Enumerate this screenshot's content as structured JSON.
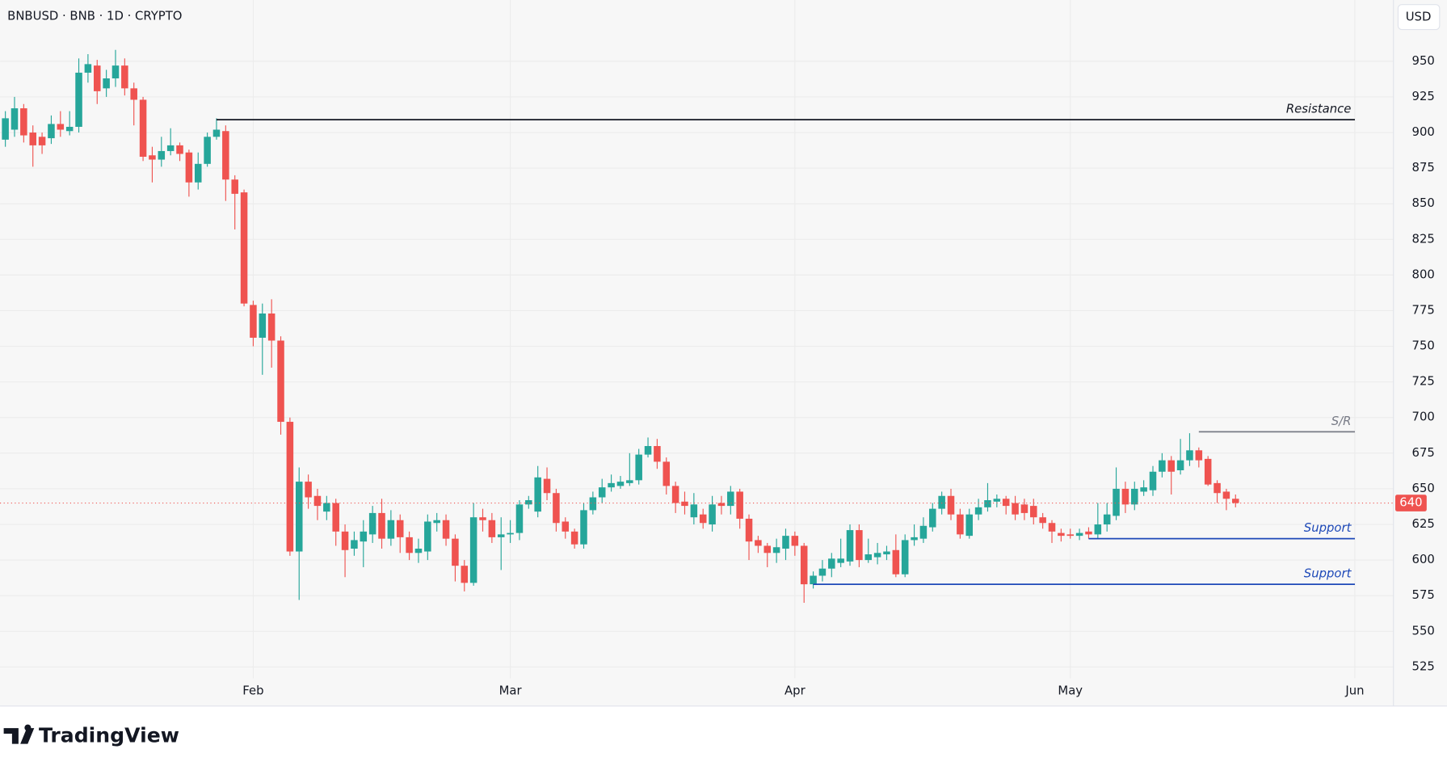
{
  "chart_data": {
    "type": "candlestick",
    "title": "BNBUSD · BNB · 1D · CRYPTO",
    "currency": "USD",
    "branding": "TradingView",
    "up_color": "#26a69a",
    "down_color": "#ef5350",
    "grid": true,
    "categories": [
      null,
      null,
      null,
      null,
      null,
      null,
      null,
      null,
      null,
      null,
      null,
      null,
      null,
      null,
      null,
      null,
      null,
      null,
      null,
      null,
      null,
      null,
      null,
      null,
      null,
      null,
      null,
      null,
      null,
      null,
      null,
      null,
      null,
      null,
      null,
      null,
      null,
      null,
      null,
      null,
      null,
      null,
      null,
      null,
      null,
      null,
      null,
      null,
      null,
      null,
      null,
      null,
      null,
      null,
      null,
      null,
      null,
      null,
      null,
      null,
      null,
      null,
      null,
      null,
      null,
      null,
      null,
      null,
      null,
      null,
      null,
      null,
      null,
      null,
      null,
      null,
      null,
      null,
      null,
      null,
      null,
      null,
      null,
      null,
      null,
      null,
      null,
      null,
      null,
      null,
      null,
      null,
      null,
      null,
      null,
      null,
      null,
      null,
      null,
      null,
      null,
      null,
      null,
      null,
      null,
      null,
      null,
      null,
      null,
      null,
      null,
      null,
      null,
      null,
      null,
      null,
      null,
      null,
      null,
      null,
      null,
      null,
      null,
      null,
      null,
      null,
      null,
      null,
      null,
      null,
      null,
      null,
      null,
      null,
      null
    ],
    "open": [
      895,
      902,
      917,
      900,
      897,
      896,
      906,
      901,
      904,
      942,
      947,
      931,
      938,
      947,
      931,
      923,
      884,
      881,
      887,
      891,
      886,
      865,
      878,
      897,
      901,
      867,
      858,
      779,
      756,
      773,
      754,
      697,
      606,
      655,
      645,
      634,
      640,
      620,
      608,
      613,
      618,
      633,
      615,
      628,
      616,
      605,
      606,
      626,
      628,
      615,
      596,
      584,
      630,
      628,
      616,
      618,
      619,
      639,
      634,
      657,
      647,
      627,
      620,
      611,
      635,
      644,
      651,
      652,
      654,
      656,
      674,
      680,
      669,
      652,
      641,
      630,
      632,
      625,
      640,
      638,
      648,
      629,
      614,
      610,
      605,
      608,
      617,
      610,
      583,
      589,
      594,
      598,
      599,
      621,
      600,
      602,
      604,
      607,
      590,
      614,
      615,
      623,
      636,
      645,
      632,
      617,
      632,
      637,
      641,
      643,
      640,
      639,
      638,
      630,
      626,
      619,
      618,
      617,
      620,
      618,
      625,
      631,
      650,
      639,
      648,
      649,
      662,
      670,
      663,
      670,
      677,
      671,
      654,
      648,
      643
    ],
    "high": [
      915,
      925,
      920,
      905,
      900,
      912,
      915,
      915,
      952,
      955,
      951,
      944,
      958,
      952,
      935,
      925,
      890,
      897,
      903,
      893,
      888,
      886,
      900,
      910,
      905,
      870,
      860,
      782,
      780,
      783,
      757,
      700,
      665,
      660,
      650,
      645,
      643,
      625,
      620,
      628,
      638,
      643,
      635,
      632,
      620,
      615,
      632,
      633,
      632,
      618,
      600,
      640,
      636,
      633,
      630,
      628,
      642,
      645,
      666,
      665,
      650,
      630,
      622,
      640,
      648,
      657,
      660,
      659,
      675,
      678,
      686,
      685,
      672,
      655,
      648,
      647,
      636,
      645,
      645,
      652,
      650,
      632,
      617,
      612,
      615,
      622,
      620,
      612,
      592,
      600,
      605,
      615,
      625,
      625,
      615,
      612,
      610,
      618,
      618,
      625,
      630,
      640,
      648,
      650,
      636,
      636,
      643,
      654,
      646,
      645,
      645,
      643,
      643,
      633,
      628,
      622,
      622,
      622,
      623,
      640,
      640,
      665,
      655,
      655,
      656,
      666,
      675,
      673,
      685,
      689,
      679,
      673,
      656,
      650,
      646
    ],
    "low": [
      890,
      897,
      893,
      876,
      885,
      892,
      897,
      898,
      900,
      935,
      920,
      925,
      932,
      926,
      905,
      880,
      865,
      876,
      884,
      880,
      855,
      860,
      876,
      895,
      852,
      832,
      778,
      750,
      730,
      735,
      688,
      603,
      572,
      636,
      628,
      628,
      610,
      588,
      603,
      595,
      612,
      608,
      610,
      605,
      600,
      598,
      600,
      620,
      610,
      585,
      578,
      582,
      620,
      612,
      593,
      612,
      614,
      636,
      630,
      642,
      620,
      615,
      608,
      608,
      632,
      640,
      648,
      650,
      652,
      653,
      672,
      664,
      646,
      633,
      632,
      625,
      622,
      620,
      632,
      632,
      622,
      600,
      605,
      595,
      598,
      600,
      603,
      570,
      580,
      585,
      588,
      595,
      596,
      595,
      598,
      597,
      600,
      588,
      588,
      610,
      612,
      620,
      632,
      628,
      615,
      615,
      628,
      634,
      637,
      632,
      628,
      628,
      625,
      622,
      612,
      613,
      615,
      614,
      615,
      615,
      620,
      628,
      633,
      635,
      645,
      645,
      658,
      646,
      660,
      666,
      665,
      652,
      640,
      635,
      637
    ],
    "close": [
      910,
      917,
      898,
      891,
      891,
      906,
      902,
      904,
      942,
      948,
      929,
      938,
      947,
      931,
      923,
      883,
      881,
      887,
      891,
      885,
      865,
      878,
      897,
      902,
      867,
      857,
      780,
      756,
      773,
      754,
      697,
      606,
      655,
      644,
      638,
      640,
      620,
      607,
      614,
      620,
      633,
      615,
      628,
      616,
      605,
      608,
      627,
      628,
      615,
      596,
      584,
      630,
      628,
      616,
      618,
      619,
      639,
      642,
      658,
      647,
      626,
      620,
      611,
      635,
      644,
      651,
      654,
      655,
      656,
      674,
      680,
      669,
      652,
      640,
      638,
      639,
      626,
      639,
      638,
      648,
      629,
      613,
      610,
      605,
      609,
      617,
      610,
      583,
      589,
      594,
      601,
      601,
      621,
      600,
      604,
      605,
      606,
      590,
      614,
      616,
      624,
      636,
      645,
      632,
      618,
      632,
      637,
      642,
      643,
      638,
      632,
      633,
      630,
      626,
      620,
      617,
      617,
      619,
      618,
      625,
      632,
      650,
      639,
      650,
      651,
      662,
      670,
      662,
      670,
      677,
      670,
      653,
      647,
      643,
      640
    ],
    "xlim": [
      -0.58,
      151.2
    ],
    "xticks": [
      {
        "value": 27,
        "label": "Feb"
      },
      {
        "value": 55,
        "label": "Mar"
      },
      {
        "value": 86,
        "label": "Apr"
      },
      {
        "value": 116,
        "label": "May"
      },
      {
        "value": 147,
        "label": "Jun"
      }
    ],
    "ylim": [
      517,
      993
    ],
    "yticks": [
      525,
      550,
      575,
      600,
      625,
      650,
      675,
      700,
      725,
      750,
      775,
      800,
      825,
      850,
      875,
      900,
      925,
      950
    ],
    "levels": [
      {
        "label": "Resistance",
        "value": 909,
        "start": 23,
        "end": 147,
        "color": "#131722"
      },
      {
        "label": "S/R",
        "value": 690,
        "start": 130,
        "end": 147,
        "color": "#787b86"
      },
      {
        "label": "Support",
        "value": 615,
        "start": 118,
        "end": 147,
        "color": "#1e49b8"
      },
      {
        "label": "Support",
        "value": 583,
        "start": 88,
        "end": 147,
        "color": "#1e49b8"
      }
    ]
  }
}
